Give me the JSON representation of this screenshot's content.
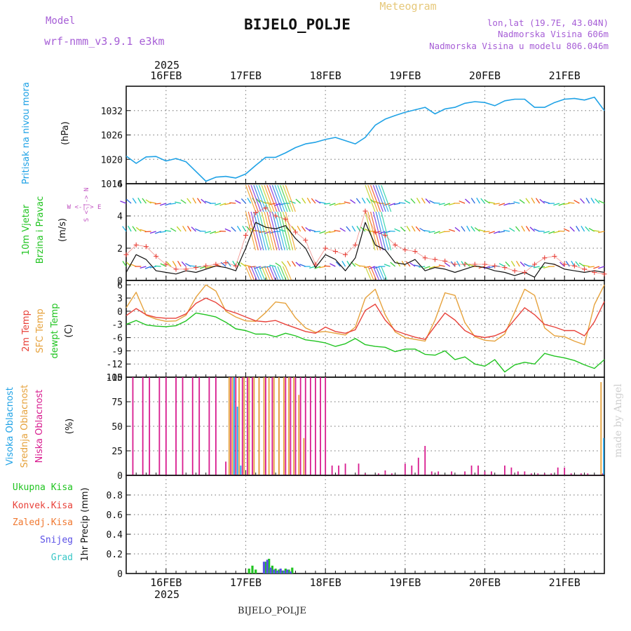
{
  "header": {
    "model_label": "Model",
    "model_name": "wrf-nmm_v3.9.1 e3km",
    "meteogram_label": "Meteogram",
    "station": "BIJELO_POLJE",
    "lonlat": "lon,lat (19.7E, 43.04N)",
    "altitude": "Nadmorska Visina 606m",
    "model_altitude": "Nadmorska Visina u modelu 806.046m",
    "watermark": "made by Angel",
    "footer_station": "BIJELO_POLJE"
  },
  "time_axis": {
    "year": "2025",
    "days": [
      "16FEB",
      "17FEB",
      "18FEB",
      "19FEB",
      "20FEB",
      "21FEB"
    ],
    "day_start_hours": [
      12,
      36,
      60,
      84,
      108,
      132
    ],
    "range_hours": [
      0,
      144
    ]
  },
  "colors": {
    "pressure": "#1fa2e6",
    "temp2m": "#e8423a",
    "sfc": "#e6a23c",
    "dewpt": "#21c421",
    "low_cloud": "#d81b8f",
    "mid_cloud": "#e6a23c",
    "high_cloud": "#1fa2e6",
    "total_precip": "#21c421",
    "conv_precip": "#e8423a",
    "frz_precip": "#f07830",
    "snow": "#5a50e6",
    "graupel": "#38c7c7",
    "wind_avg": "#111111",
    "wind_gust": "#e8423a"
  },
  "chart_data": [
    {
      "type": "line",
      "title": "Pritisak na nivou mora",
      "ylabel": "(hPa)",
      "ylim": [
        1014,
        1038
      ],
      "yticks": [
        1014,
        1020,
        1026,
        1032
      ],
      "x_hours": [
        0,
        3,
        6,
        9,
        12,
        15,
        18,
        21,
        24,
        27,
        30,
        33,
        36,
        39,
        42,
        45,
        48,
        51,
        54,
        57,
        60,
        63,
        66,
        69,
        72,
        75,
        78,
        81,
        84,
        87,
        90,
        93,
        96,
        99,
        102,
        105,
        108,
        111,
        114,
        117,
        120,
        123,
        126,
        129,
        132,
        135,
        138,
        141,
        144
      ],
      "series": [
        {
          "name": "Pritisak na nivou mora",
          "values": [
            1020.8,
            1019.0,
            1020.6,
            1020.7,
            1019.6,
            1020.2,
            1019.4,
            1017.0,
            1014.6,
            1015.6,
            1015.8,
            1015.4,
            1016.4,
            1018.5,
            1020.5,
            1020.5,
            1021.6,
            1022.9,
            1023.8,
            1024.2,
            1024.9,
            1025.4,
            1024.6,
            1023.8,
            1025.4,
            1028.4,
            1029.9,
            1030.8,
            1031.6,
            1032.2,
            1032.8,
            1031.2,
            1032.4,
            1032.8,
            1033.8,
            1034.2,
            1034.0,
            1033.2,
            1034.4,
            1034.8,
            1034.8,
            1032.8,
            1032.8,
            1034.0,
            1034.8,
            1035.0,
            1034.6,
            1035.3,
            1032.0
          ]
        }
      ]
    },
    {
      "type": "line",
      "title": "10m Vjetar Brzina i Pravac",
      "ylabel": "(m/s)",
      "compass": "W <-|-> E",
      "compass_ns": "S <-|-> N",
      "ylim": [
        0,
        6
      ],
      "yticks": [
        0,
        2,
        4,
        6
      ],
      "x_hours": [
        0,
        3,
        6,
        9,
        12,
        15,
        18,
        21,
        24,
        27,
        30,
        33,
        36,
        39,
        42,
        45,
        48,
        51,
        54,
        57,
        60,
        63,
        66,
        69,
        72,
        75,
        78,
        81,
        84,
        87,
        90,
        93,
        96,
        99,
        102,
        105,
        108,
        111,
        114,
        117,
        120,
        123,
        126,
        129,
        132,
        135,
        138,
        141,
        144
      ],
      "series": [
        {
          "name": "Srednja brzina",
          "values": [
            0.5,
            1.6,
            1.3,
            0.6,
            0.5,
            0.4,
            0.6,
            0.5,
            0.7,
            0.9,
            0.8,
            0.6,
            2.0,
            3.6,
            3.3,
            3.2,
            3.4,
            2.6,
            2.0,
            0.8,
            1.6,
            1.3,
            0.6,
            1.4,
            3.6,
            2.2,
            1.9,
            1.1,
            1.0,
            1.3,
            0.6,
            0.8,
            0.7,
            0.5,
            0.7,
            0.9,
            0.8,
            0.6,
            0.5,
            0.3,
            0.5,
            0.2,
            1.1,
            1.0,
            0.7,
            0.6,
            0.5,
            0.6,
            0.5
          ]
        },
        {
          "name": "Udari",
          "values": [
            1.6,
            2.2,
            2.1,
            1.5,
            1.0,
            0.7,
            0.7,
            0.8,
            0.9,
            1.0,
            1.1,
            0.9,
            2.8,
            4.2,
            4.5,
            4.0,
            3.8,
            3.0,
            2.5,
            1.0,
            2.0,
            1.8,
            1.6,
            2.2,
            4.3,
            3.0,
            2.8,
            2.2,
            1.9,
            1.8,
            1.4,
            1.3,
            1.2,
            1.0,
            1.0,
            1.0,
            1.0,
            0.9,
            0.8,
            0.6,
            0.5,
            1.0,
            1.4,
            1.5,
            1.0,
            0.9,
            0.7,
            0.5,
            0.4
          ]
        }
      ]
    },
    {
      "type": "line",
      "title": "2m Temp / SFC Temp / dewpt Temp",
      "ylabel": "(C)",
      "ylim": [
        -15,
        7
      ],
      "yticks": [
        -15,
        -12,
        -9,
        -6,
        -3,
        0,
        3,
        6
      ],
      "x_hours": [
        0,
        3,
        6,
        9,
        12,
        15,
        18,
        21,
        24,
        27,
        30,
        33,
        36,
        39,
        42,
        45,
        48,
        51,
        54,
        57,
        60,
        63,
        66,
        69,
        72,
        75,
        78,
        81,
        84,
        87,
        90,
        93,
        96,
        99,
        102,
        105,
        108,
        111,
        114,
        117,
        120,
        123,
        126,
        129,
        132,
        135,
        138,
        141,
        144
      ],
      "series": [
        {
          "name": "2m Temp",
          "values": [
            -1.0,
            0.6,
            -0.8,
            -1.4,
            -1.6,
            -1.6,
            -0.6,
            1.8,
            3.0,
            2.0,
            0.3,
            -0.4,
            -1.3,
            -2.2,
            -2.4,
            -2.1,
            -3.0,
            -3.8,
            -4.6,
            -5.0,
            -3.6,
            -4.6,
            -5.0,
            -4.2,
            0.2,
            1.6,
            -2.0,
            -4.4,
            -5.2,
            -5.9,
            -6.4,
            -3.4,
            -0.4,
            -2.0,
            -4.4,
            -5.6,
            -6.0,
            -5.6,
            -4.6,
            -1.9,
            0.8,
            -0.8,
            -3.0,
            -3.6,
            -4.4,
            -4.4,
            -5.6,
            -2.4,
            2.2
          ]
        },
        {
          "name": "SFC Temp",
          "values": [
            0.8,
            4.3,
            -0.9,
            -1.8,
            -2.3,
            -2.2,
            -0.9,
            3.2,
            6.0,
            4.6,
            0.0,
            -1.3,
            -2.2,
            -2.3,
            -0.3,
            2.1,
            1.8,
            -1.5,
            -3.8,
            -4.8,
            -4.6,
            -5.0,
            -5.4,
            -3.6,
            3.0,
            5.0,
            -0.8,
            -4.7,
            -6.0,
            -6.4,
            -6.8,
            -2.0,
            4.2,
            3.6,
            -2.6,
            -5.8,
            -6.6,
            -6.8,
            -5.2,
            -0.2,
            5.0,
            3.6,
            -3.8,
            -5.6,
            -5.8,
            -6.8,
            -7.6,
            1.5,
            6.0
          ]
        },
        {
          "name": "dewpt Temp",
          "values": [
            -3.0,
            -2.1,
            -3.1,
            -3.4,
            -3.5,
            -3.3,
            -2.2,
            -0.4,
            -0.8,
            -1.3,
            -2.5,
            -4.0,
            -4.4,
            -5.2,
            -5.2,
            -5.8,
            -5.0,
            -5.6,
            -6.5,
            -6.8,
            -7.2,
            -8.0,
            -7.4,
            -6.2,
            -7.6,
            -8.0,
            -8.2,
            -9.2,
            -8.6,
            -8.6,
            -9.8,
            -10.0,
            -9.0,
            -11.0,
            -10.4,
            -12.0,
            -12.5,
            -11.0,
            -13.8,
            -12.2,
            -11.6,
            -12.0,
            -9.6,
            -10.2,
            -10.6,
            -11.2,
            -12.2,
            -13.0,
            -11.0
          ]
        }
      ]
    },
    {
      "type": "bar",
      "title": "Visoka / Srednja / Niska Oblacnost",
      "ylabel": "(%)",
      "ylim": [
        0,
        100
      ],
      "yticks": [
        0,
        25,
        50,
        75,
        100
      ],
      "series": [
        {
          "name": "Niska Oblacnost",
          "x_hours": [
            2,
            5,
            7,
            10,
            12,
            15,
            17,
            20,
            22,
            25,
            27,
            30,
            31.5,
            33,
            35,
            36.5,
            38,
            40,
            42,
            44,
            46,
            48,
            49.5,
            51,
            52.5,
            54,
            55.5,
            57,
            58.5,
            60,
            62,
            64,
            66,
            70,
            72,
            76,
            78,
            80,
            84,
            86,
            88,
            90,
            92,
            94,
            98,
            102,
            104,
            106,
            108,
            110,
            114,
            116,
            118,
            120,
            122,
            124,
            126,
            128,
            130,
            132,
            134,
            137,
            139,
            143.5
          ],
          "values": [
            100,
            100,
            100,
            100,
            100,
            100,
            100,
            100,
            100,
            100,
            100,
            14,
            100,
            100,
            100,
            100,
            100,
            100,
            100,
            100,
            100,
            100,
            100,
            100,
            100,
            100,
            100,
            100,
            100,
            100,
            10,
            10,
            12,
            12,
            2,
            2,
            5,
            2,
            12,
            10,
            18,
            30,
            4,
            4,
            4,
            4,
            10,
            10,
            4,
            4,
            10,
            8,
            4,
            4,
            2,
            2,
            2,
            2,
            8,
            8,
            2,
            2,
            2,
            2
          ]
        },
        {
          "name": "Srednja Oblacnost",
          "x_hours": [
            31,
            32,
            34,
            35.5,
            37,
            38.5,
            40,
            41.5,
            43,
            44.5,
            46,
            47.5,
            49,
            50.5,
            52,
            53.5,
            143
          ],
          "values": [
            100,
            100,
            100,
            100,
            100,
            100,
            100,
            100,
            100,
            100,
            100,
            100,
            100,
            100,
            82,
            38,
            95
          ]
        },
        {
          "name": "Visoka Oblacnost",
          "x_hours": [
            32.5,
            33.5,
            34.5,
            143.8
          ],
          "values": [
            100,
            70,
            10,
            38
          ]
        }
      ]
    },
    {
      "type": "bar",
      "title": "1hr Precip",
      "ylabel": "1hr Precip (mm)",
      "ylim": [
        0,
        1
      ],
      "yticks": [
        0.2,
        0.4,
        0.6,
        0.8
      ],
      "legend": [
        "Ukupna Kisa",
        "Konvek.Kisa",
        "Zaledj.Kisa",
        "Snijeg",
        "Grad"
      ],
      "series": [
        {
          "name": "Ukupna Kisa",
          "x_hours": [
            37,
            38,
            39,
            42,
            43,
            44,
            45,
            46,
            47,
            48,
            49,
            50
          ],
          "values": [
            0.05,
            0.08,
            0.04,
            0.12,
            0.15,
            0.08,
            0.05,
            0.04,
            0.03,
            0.05,
            0.04,
            0.06
          ]
        },
        {
          "name": "Snijeg",
          "x_hours": [
            41.5,
            42.5,
            43.5,
            44.5,
            45.5,
            46.5,
            47.5,
            48.5,
            49.5
          ],
          "values": [
            0.12,
            0.14,
            0.06,
            0.04,
            0.03,
            0.05,
            0.03,
            0.04,
            0.02
          ]
        }
      ]
    }
  ],
  "panel_labels": {
    "pressure_title": "Pritisak na nivou mora",
    "pressure_unit": "(hPa)",
    "wind_title_1": "10m Vjetar",
    "wind_title_2": "Brzina i Pravac",
    "wind_unit": "(m/s)",
    "wind_compass": "W <-|-> E",
    "wind_compass_ns": "S <-|-> N",
    "temp_title_1": "2m Temp",
    "temp_title_2": "SFC Temp",
    "temp_title_3": "dewpt Temp",
    "temp_unit": "(C)",
    "cloud_title_1": "Visoka Oblacnost",
    "cloud_title_2": "Srednja Oblacnost",
    "cloud_title_3": "Niska Oblacnost",
    "cloud_unit": "(%)",
    "precip_unit": "1hr Precip (mm)",
    "legend_total": "Ukupna Kisa",
    "legend_conv": "Konvek.Kisa",
    "legend_frz": "Zaledj.Kisa",
    "legend_snow": "Snijeg",
    "legend_graupel": "Grad"
  }
}
